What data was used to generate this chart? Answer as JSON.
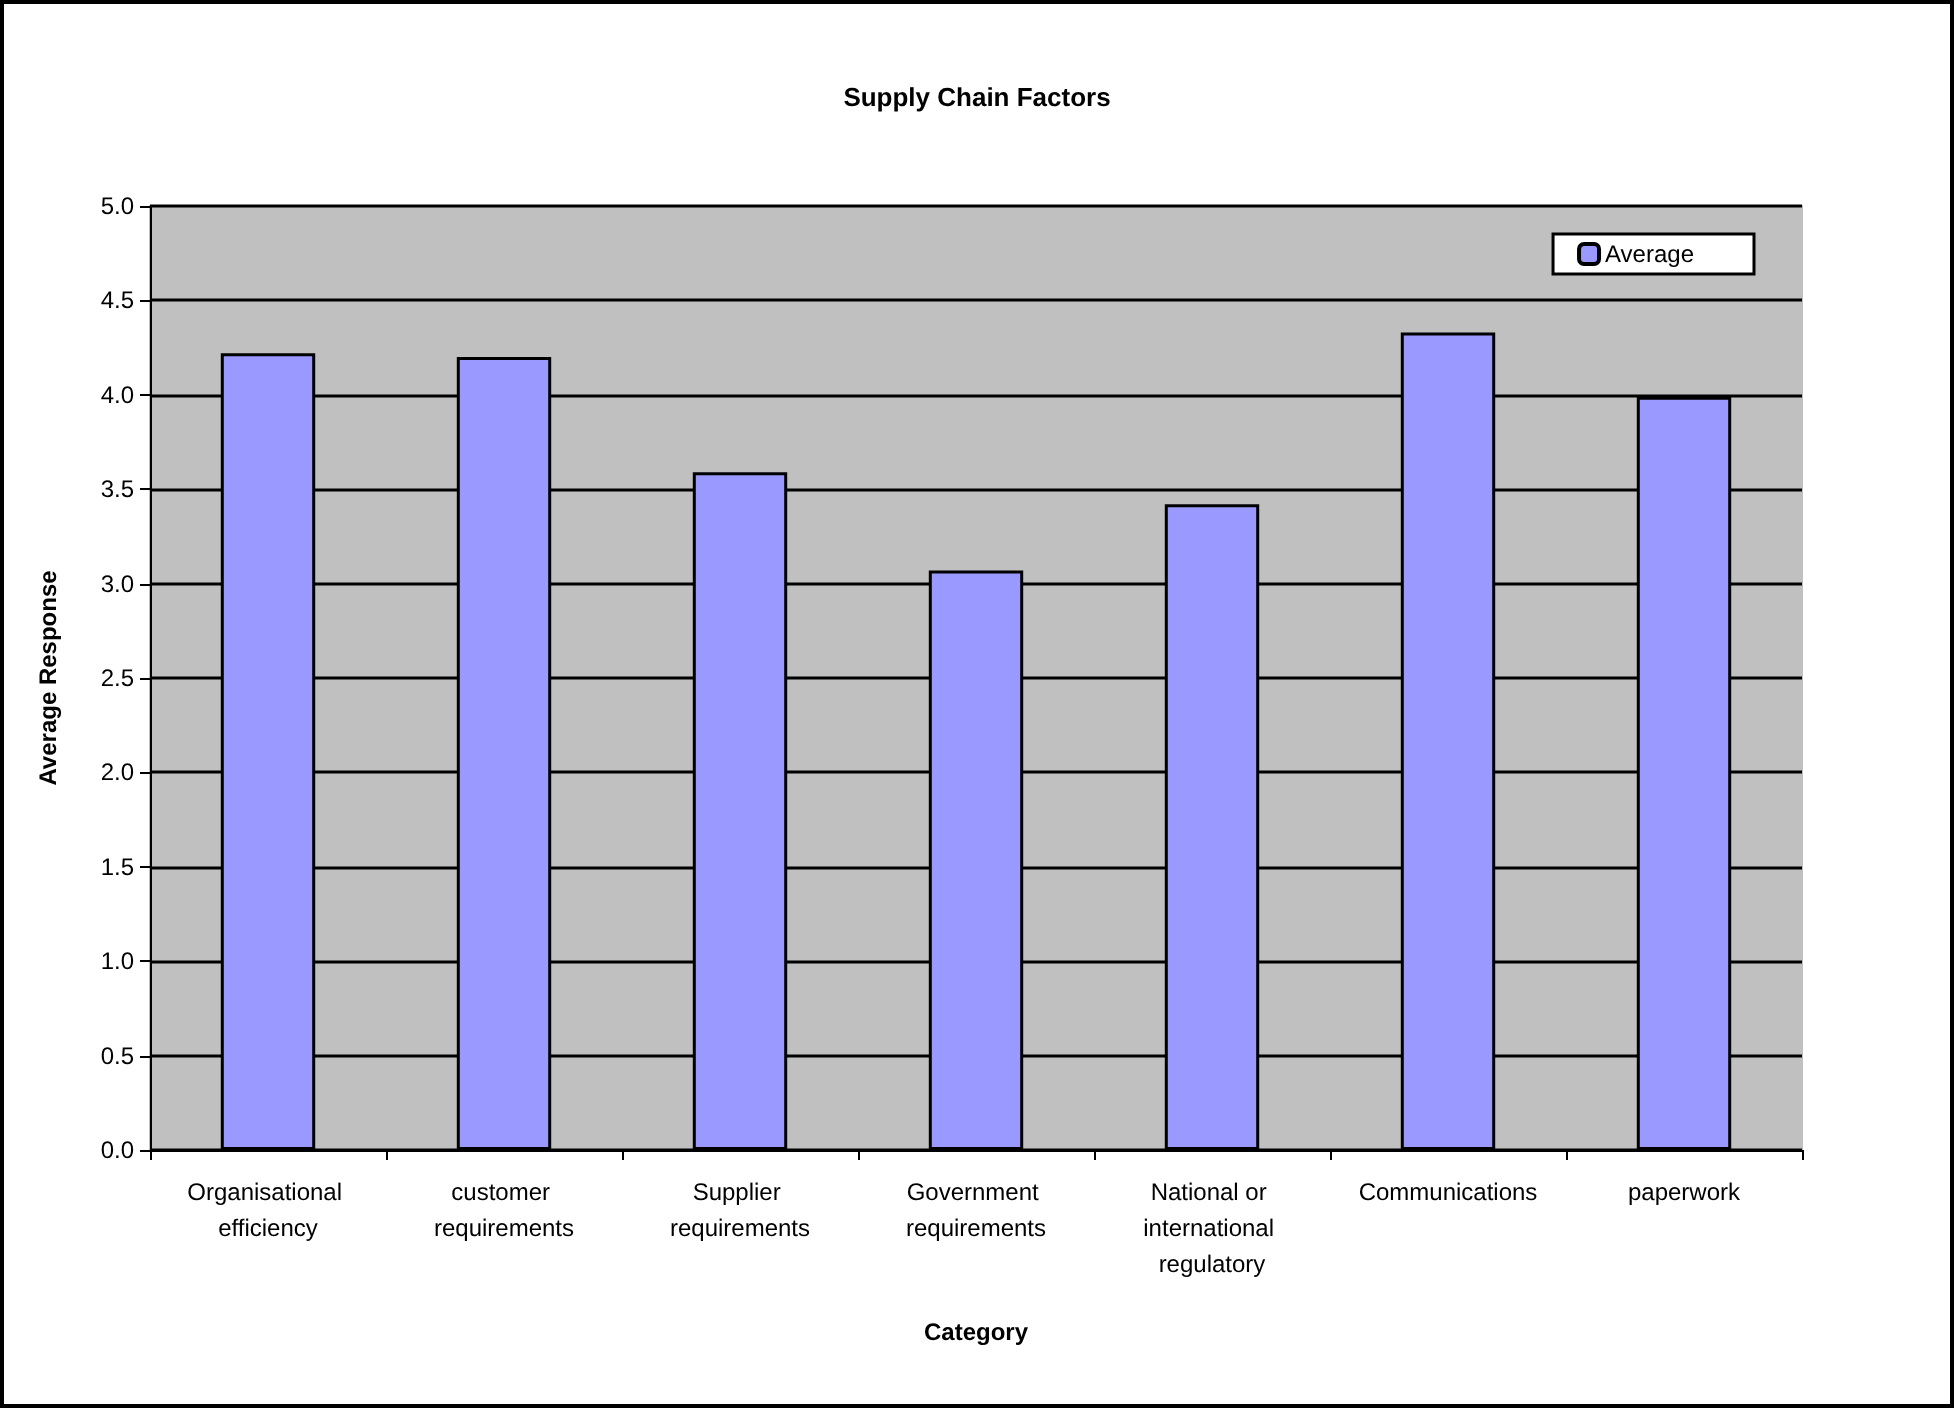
{
  "chart_data": {
    "type": "bar",
    "title": "Supply Chain Factors",
    "xlabel": "Category",
    "ylabel": "Average Response",
    "categories": [
      "Organisational efficiency",
      "customer requirements",
      "Supplier requirements",
      "Government requirements",
      "National or international regulatory",
      "Communications",
      "paperwork"
    ],
    "series": [
      {
        "name": "Average",
        "color": "#9999ff",
        "values": [
          4.22,
          4.2,
          3.59,
          3.07,
          3.42,
          4.33,
          3.99
        ]
      }
    ],
    "ylim": [
      0,
      5
    ],
    "yticks": [
      {
        "value": 0,
        "label": "0.0"
      },
      {
        "value": 0.5,
        "label": "0.5"
      },
      {
        "value": 1,
        "label": "1.0"
      },
      {
        "value": 1.5,
        "label": "1.5"
      },
      {
        "value": 2,
        "label": "2.0"
      },
      {
        "value": 2.5,
        "label": "2.5"
      },
      {
        "value": 3,
        "label": "3.0"
      },
      {
        "value": 3.5,
        "label": "3.5"
      },
      {
        "value": 4,
        "label": "4.0"
      },
      {
        "value": 4.5,
        "label": "4.5"
      },
      {
        "value": 5,
        "label": "5.0"
      }
    ],
    "grid": "y",
    "legend": "top right"
  }
}
